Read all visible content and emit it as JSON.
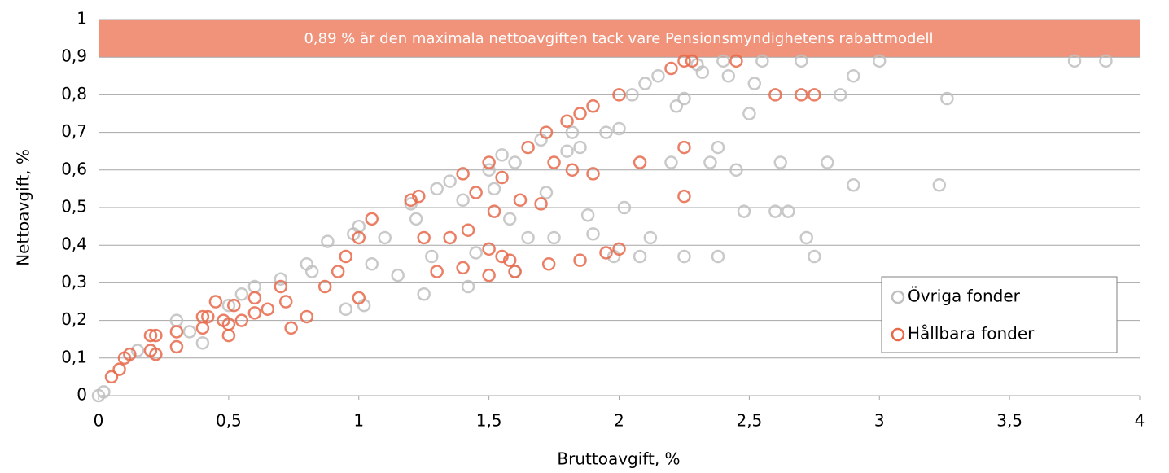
{
  "chart_data": {
    "type": "scatter",
    "annotation": "0,89 % är den maximala nettoavgiften tack vare Pensionsmyndighetens rabattmodell",
    "xlabel": "Bruttoavgift, %",
    "ylabel": "Nettoavgift, %",
    "xlim": [
      0,
      4
    ],
    "xticks": [
      0,
      {
        "value": 0.5,
        "label": "0,5"
      },
      1,
      {
        "value": 1.5,
        "label": "1,5"
      },
      2,
      {
        "value": 2.5,
        "label": "2,5"
      },
      3,
      {
        "value": 3.5,
        "label": "3,5"
      },
      4
    ],
    "ylim": [
      0,
      1
    ],
    "yticks": [
      0,
      {
        "value": 0.1,
        "label": "0,1"
      },
      {
        "value": 0.2,
        "label": "0,2"
      },
      {
        "value": 0.3,
        "label": "0,3"
      },
      {
        "value": 0.4,
        "label": "0,4"
      },
      {
        "value": 0.5,
        "label": "0,5"
      },
      {
        "value": 0.6,
        "label": "0,6"
      },
      {
        "value": 0.7,
        "label": "0,7"
      },
      {
        "value": 0.8,
        "label": "0,8"
      },
      {
        "value": 0.9,
        "label": "0,9"
      },
      1
    ],
    "grid": true,
    "legend": "lower right",
    "series": [
      {
        "name": "Övriga fonder",
        "color": "#bfbfbf",
        "x": [
          0,
          0.02,
          0.15,
          0.3,
          0.35,
          0.4,
          0.5,
          0.55,
          0.6,
          0.7,
          0.8,
          0.82,
          0.88,
          0.95,
          0.98,
          1,
          1.02,
          1.05,
          1.1,
          1.15,
          1.2,
          1.22,
          1.25,
          1.28,
          1.3,
          1.35,
          1.4,
          1.42,
          1.45,
          1.5,
          1.52,
          1.55,
          1.58,
          1.6,
          1.65,
          1.7,
          1.72,
          1.75,
          1.8,
          1.82,
          1.85,
          1.88,
          1.9,
          1.95,
          2,
          2.02,
          2.05,
          2.1,
          2.12,
          2.15,
          2.2,
          2.22,
          2.25,
          2.3,
          2.32,
          2.35,
          2.38,
          2.4,
          2.42,
          2.45,
          2.48,
          2.5,
          2.52,
          2.55,
          2.6,
          2.62,
          2.65,
          2.7,
          2.72,
          2.75,
          2.8,
          2.85,
          2.9,
          2.9,
          3,
          3.23,
          3.26,
          3.75,
          3.87,
          1.6,
          2.25,
          2.38,
          1.98,
          2.08
        ],
        "values": [
          0,
          0.01,
          0.12,
          0.2,
          0.17,
          0.14,
          0.24,
          0.27,
          0.29,
          0.31,
          0.35,
          0.33,
          0.41,
          0.23,
          0.43,
          0.45,
          0.24,
          0.35,
          0.42,
          0.32,
          0.51,
          0.47,
          0.27,
          0.37,
          0.55,
          0.57,
          0.52,
          0.29,
          0.38,
          0.6,
          0.55,
          0.64,
          0.47,
          0.62,
          0.42,
          0.68,
          0.54,
          0.42,
          0.65,
          0.7,
          0.66,
          0.48,
          0.43,
          0.7,
          0.71,
          0.5,
          0.8,
          0.83,
          0.42,
          0.85,
          0.62,
          0.77,
          0.79,
          0.88,
          0.86,
          0.62,
          0.66,
          0.89,
          0.85,
          0.6,
          0.49,
          0.75,
          0.83,
          0.89,
          0.49,
          0.62,
          0.49,
          0.89,
          0.42,
          0.37,
          0.62,
          0.8,
          0.85,
          0.56,
          0.89,
          0.56,
          0.79,
          0.89,
          0.89,
          0.33,
          0.37,
          0.37,
          0.37,
          0.37
        ]
      },
      {
        "name": "Hållbara fonder",
        "color": "#e8694a",
        "x": [
          0.05,
          0.08,
          0.1,
          0.12,
          0.2,
          0.22,
          0.2,
          0.22,
          0.3,
          0.3,
          0.4,
          0.4,
          0.42,
          0.45,
          0.48,
          0.5,
          0.5,
          0.52,
          0.55,
          0.6,
          0.6,
          0.65,
          0.7,
          0.72,
          0.74,
          0.8,
          0.87,
          0.92,
          0.95,
          1,
          1,
          1.05,
          1.2,
          1.23,
          1.25,
          1.3,
          1.35,
          1.4,
          1.4,
          1.42,
          1.45,
          1.5,
          1.5,
          1.5,
          1.52,
          1.55,
          1.55,
          1.58,
          1.6,
          1.62,
          1.65,
          1.7,
          1.72,
          1.73,
          1.75,
          1.8,
          1.82,
          1.85,
          1.85,
          1.9,
          1.9,
          1.95,
          2,
          2,
          2.08,
          2.2,
          2.25,
          2.28,
          2.25,
          2.25,
          2.45,
          2.6,
          2.7,
          2.75
        ],
        "values": [
          0.05,
          0.07,
          0.1,
          0.11,
          0.16,
          0.16,
          0.12,
          0.11,
          0.13,
          0.17,
          0.21,
          0.18,
          0.21,
          0.25,
          0.2,
          0.16,
          0.19,
          0.24,
          0.2,
          0.26,
          0.22,
          0.23,
          0.29,
          0.25,
          0.18,
          0.21,
          0.29,
          0.33,
          0.37,
          0.26,
          0.42,
          0.47,
          0.52,
          0.53,
          0.42,
          0.33,
          0.42,
          0.59,
          0.34,
          0.44,
          0.54,
          0.62,
          0.32,
          0.39,
          0.49,
          0.58,
          0.37,
          0.36,
          0.33,
          0.52,
          0.66,
          0.51,
          0.7,
          0.35,
          0.62,
          0.73,
          0.6,
          0.75,
          0.36,
          0.77,
          0.59,
          0.38,
          0.8,
          0.39,
          0.62,
          0.87,
          0.89,
          0.89,
          0.66,
          0.53,
          0.89,
          0.8,
          0.8,
          0.8
        ]
      }
    ]
  }
}
